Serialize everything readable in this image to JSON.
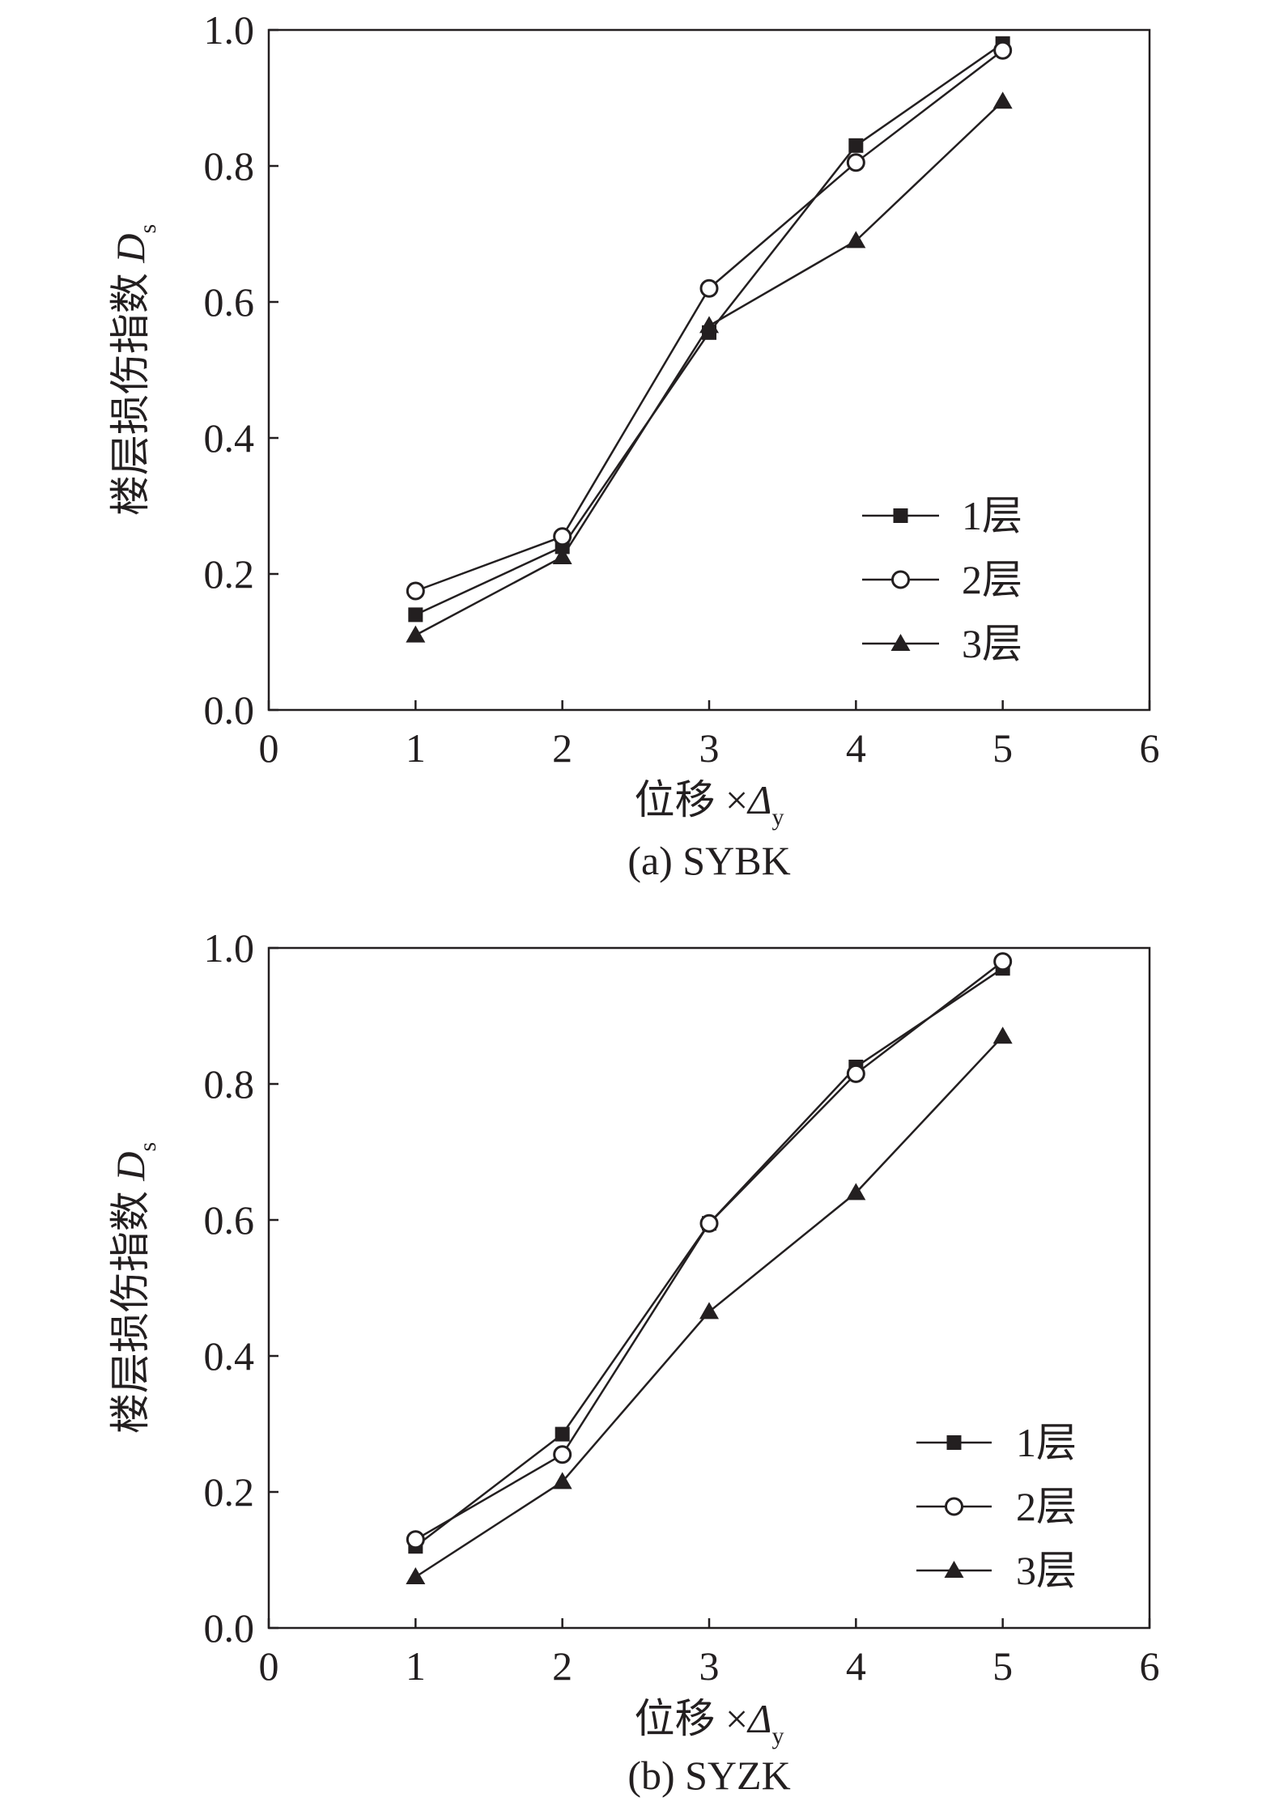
{
  "chart_data": [
    {
      "type": "line",
      "caption": "(a) SYBK",
      "xlabel": {
        "main": "位移 ×",
        "symbol": "Δ",
        "sub": "y"
      },
      "ylabel": {
        "main": "楼层损伤指数 ",
        "symbol": "D",
        "sub": "s"
      },
      "xlim": [
        0,
        6
      ],
      "ylim": [
        0,
        1.0
      ],
      "xticks": [
        "0",
        "1",
        "2",
        "3",
        "4",
        "5",
        "6"
      ],
      "yticks": [
        "0.0",
        "0.2",
        "0.4",
        "0.6",
        "0.8",
        "1.0"
      ],
      "x": [
        1,
        2,
        3,
        4,
        5
      ],
      "legend_position": "lower-right",
      "grid": false,
      "series": [
        {
          "name": "1层",
          "marker": "square-filled",
          "values": [
            0.14,
            0.24,
            0.555,
            0.83,
            0.98
          ]
        },
        {
          "name": "2层",
          "marker": "circle-open",
          "values": [
            0.175,
            0.255,
            0.62,
            0.805,
            0.97
          ]
        },
        {
          "name": "3层",
          "marker": "triangle-filled",
          "values": [
            0.11,
            0.225,
            0.565,
            0.69,
            0.895
          ]
        }
      ]
    },
    {
      "type": "line",
      "caption": "(b) SYZK",
      "xlabel": {
        "main": "位移 ×",
        "symbol": "Δ",
        "sub": "y"
      },
      "ylabel": {
        "main": "楼层损伤指数 ",
        "symbol": "D",
        "sub": "s"
      },
      "xlim": [
        0,
        6
      ],
      "ylim": [
        0,
        1.0
      ],
      "xticks": [
        "0",
        "1",
        "2",
        "3",
        "4",
        "5",
        "6"
      ],
      "yticks": [
        "0.0",
        "0.2",
        "0.4",
        "0.6",
        "0.8",
        "1.0"
      ],
      "x": [
        1,
        2,
        3,
        4,
        5
      ],
      "legend_position": "lower-right",
      "grid": false,
      "series": [
        {
          "name": "1层",
          "marker": "square-filled",
          "values": [
            0.12,
            0.285,
            0.595,
            0.825,
            0.97
          ]
        },
        {
          "name": "2层",
          "marker": "circle-open",
          "values": [
            0.13,
            0.255,
            0.595,
            0.815,
            0.98
          ]
        },
        {
          "name": "3层",
          "marker": "triangle-filled",
          "values": [
            0.075,
            0.215,
            0.465,
            0.64,
            0.87
          ]
        }
      ]
    }
  ]
}
